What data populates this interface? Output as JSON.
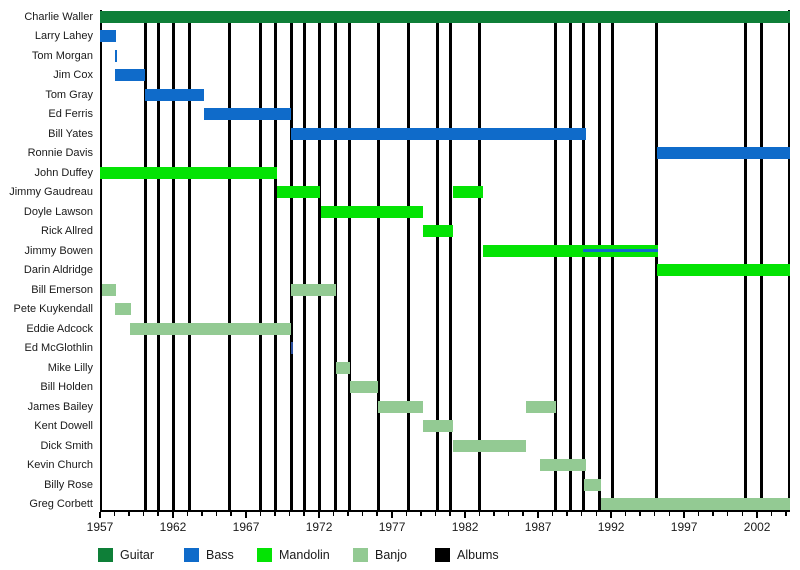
{
  "background": "#ffffff",
  "colors": {
    "guitar": "#0e7f38",
    "bass": "#0f6bca",
    "mandolin": "#04e304",
    "banjo": "#93ca93",
    "albums": "#000000",
    "axis": "#000000",
    "short_stint_dark_blue": "#2b4f9e",
    "label_text": "#1a1a1a"
  },
  "legend": {
    "items": [
      {
        "label": "Guitar",
        "color_key": "guitar"
      },
      {
        "label": "Bass",
        "color_key": "bass"
      },
      {
        "label": "Mandolin",
        "color_key": "mandolin"
      },
      {
        "label": "Banjo",
        "color_key": "banjo"
      },
      {
        "label": "Albums",
        "color_key": "albums"
      }
    ]
  },
  "chart_data": {
    "type": "timeline",
    "description": "Band members timeline: horizontal bars show each member's tenure by instrument; black vertical lines mark album releases",
    "x_axis": {
      "start_year": 1957,
      "end_year": 2004.25,
      "major_tick_labels": [
        "1957",
        "1962",
        "1967",
        "1972",
        "1977",
        "1982",
        "1987",
        "1992",
        "1997",
        "2002"
      ],
      "major_tick_years": [
        1957,
        1962,
        1967,
        1972,
        1977,
        1982,
        1987,
        1992,
        1997,
        2002
      ],
      "minor_tick_every_years": 1
    },
    "album_release_years": [
      1960.1,
      1961,
      1962,
      1963.1,
      1965.9,
      1968,
      1969,
      1970.1,
      1971,
      1972,
      1973.1,
      1974.1,
      1976.1,
      1978.1,
      1980.1,
      1981,
      1983,
      1988.2,
      1989.2,
      1990.1,
      1991.2,
      1992.1,
      1995.1,
      2001.2,
      2002.3
    ],
    "members": [
      {
        "name": "Charlie Waller",
        "bars": [
          {
            "start": 1957,
            "end": 2004.25,
            "instrument": "guitar"
          }
        ]
      },
      {
        "name": "Larry Lahey",
        "bars": [
          {
            "start": 1957,
            "end": 1958.1,
            "instrument": "bass"
          }
        ]
      },
      {
        "name": "Tom Morgan",
        "bars": [
          {
            "start": 1958,
            "end": 1958.15,
            "instrument": "bass"
          }
        ]
      },
      {
        "name": "Jim Cox",
        "bars": [
          {
            "start": 1958,
            "end": 1960.05,
            "instrument": "bass"
          }
        ]
      },
      {
        "name": "Tom Gray",
        "bars": [
          {
            "start": 1960.05,
            "end": 1964.1,
            "instrument": "bass"
          }
        ]
      },
      {
        "name": "Ed Ferris",
        "bars": [
          {
            "start": 1964.1,
            "end": 1970.05,
            "instrument": "bass"
          }
        ]
      },
      {
        "name": "Bill Yates",
        "bars": [
          {
            "start": 1970.1,
            "end": 1990.25,
            "instrument": "bass"
          }
        ]
      },
      {
        "name": "Ronnie Davis",
        "bars": [
          {
            "start": 1995.15,
            "end": 2004.25,
            "instrument": "bass"
          }
        ]
      },
      {
        "name": "John Duffey",
        "bars": [
          {
            "start": 1957,
            "end": 1969.15,
            "instrument": "mandolin"
          }
        ]
      },
      {
        "name": "Jimmy Gaudreau",
        "bars": [
          {
            "start": 1969.1,
            "end": 1972.1,
            "instrument": "mandolin"
          },
          {
            "start": 1981.15,
            "end": 1983.2,
            "instrument": "mandolin"
          }
        ]
      },
      {
        "name": "Doyle Lawson",
        "bars": [
          {
            "start": 1972.1,
            "end": 1979.15,
            "instrument": "mandolin"
          }
        ]
      },
      {
        "name": "Rick Allred",
        "bars": [
          {
            "start": 1979.15,
            "end": 1981.15,
            "instrument": "mandolin"
          }
        ]
      },
      {
        "name": "Jimmy Bowen",
        "bars": [
          {
            "start": 1983.2,
            "end": 1995.2,
            "instrument": "mandolin"
          },
          {
            "start": 1990.1,
            "end": 1995.2,
            "instrument": "bass",
            "thin": true
          }
        ]
      },
      {
        "name": "Darin Aldridge",
        "bars": [
          {
            "start": 1995.15,
            "end": 2004.25,
            "instrument": "mandolin"
          }
        ]
      },
      {
        "name": "Bill Emerson",
        "bars": [
          {
            "start": 1957.15,
            "end": 1958.1,
            "instrument": "banjo"
          },
          {
            "start": 1970.05,
            "end": 1973.15,
            "instrument": "banjo"
          }
        ]
      },
      {
        "name": "Pete Kuykendall",
        "bars": [
          {
            "start": 1958,
            "end": 1959.1,
            "instrument": "banjo"
          }
        ]
      },
      {
        "name": "Eddie Adcock",
        "bars": [
          {
            "start": 1959.05,
            "end": 1970.1,
            "instrument": "banjo"
          }
        ]
      },
      {
        "name": "Ed McGlothlin",
        "bars": [
          {
            "start": 1970.05,
            "end": 1970.2,
            "instrument": "unknown",
            "color_key": "short_stint_dark_blue"
          }
        ]
      },
      {
        "name": "Mike Lilly",
        "bars": [
          {
            "start": 1973.15,
            "end": 1974.15,
            "instrument": "banjo"
          }
        ]
      },
      {
        "name": "Bill Holden",
        "bars": [
          {
            "start": 1974.15,
            "end": 1976.05,
            "instrument": "banjo"
          }
        ]
      },
      {
        "name": "James Bailey",
        "bars": [
          {
            "start": 1976.05,
            "end": 1979.1,
            "instrument": "banjo"
          },
          {
            "start": 1986.15,
            "end": 1988.25,
            "instrument": "banjo"
          }
        ]
      },
      {
        "name": "Kent Dowell",
        "bars": [
          {
            "start": 1979.1,
            "end": 1981.15,
            "instrument": "banjo"
          }
        ]
      },
      {
        "name": "Dick Smith",
        "bars": [
          {
            "start": 1981.15,
            "end": 1986.15,
            "instrument": "banjo"
          }
        ]
      },
      {
        "name": "Kevin Church",
        "bars": [
          {
            "start": 1987.15,
            "end": 1990.25,
            "instrument": "banjo"
          }
        ]
      },
      {
        "name": "Billy Rose",
        "bars": [
          {
            "start": 1990.15,
            "end": 1991.3,
            "instrument": "banjo"
          }
        ]
      },
      {
        "name": "Greg Corbett",
        "bars": [
          {
            "start": 1991.3,
            "end": 2004.25,
            "instrument": "banjo"
          }
        ]
      }
    ]
  }
}
